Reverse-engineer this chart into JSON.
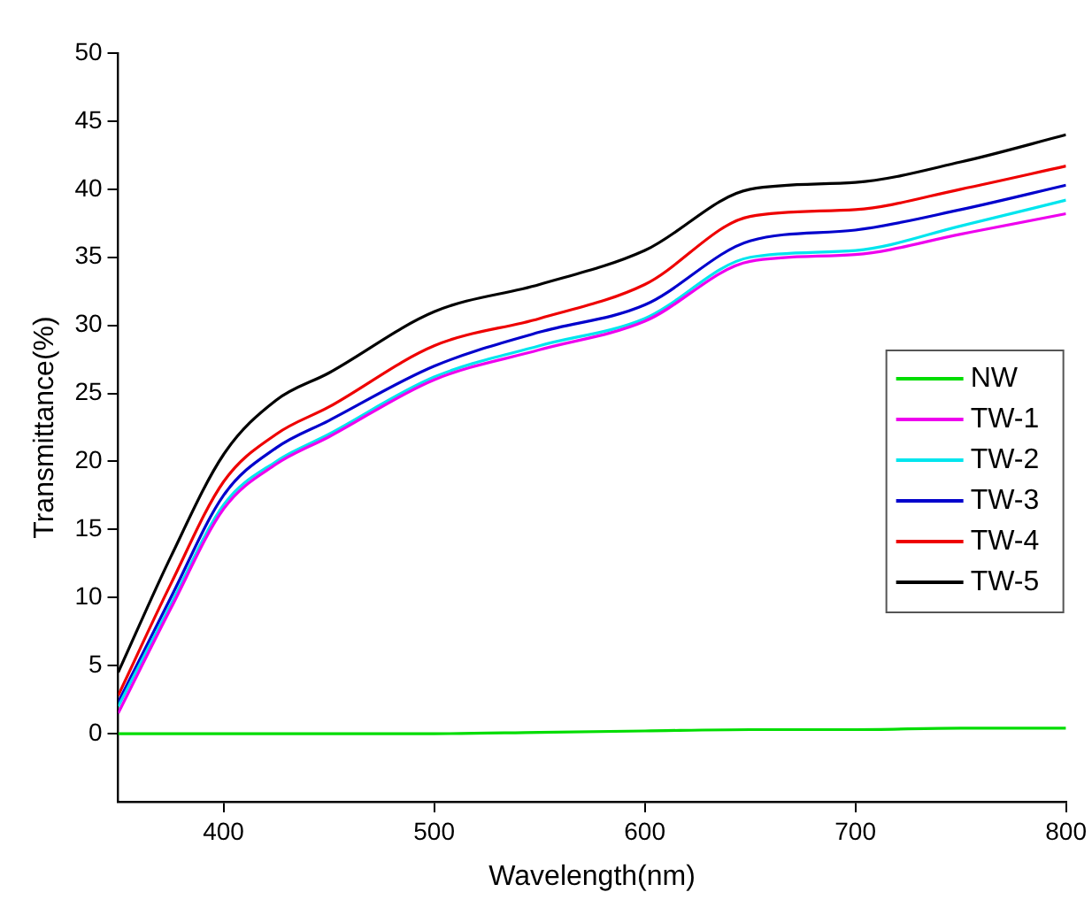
{
  "chart_data": {
    "type": "line",
    "xlabel": "Wavelength(nm)",
    "ylabel": "Transmittance(%)",
    "x": [
      350,
      375,
      400,
      425,
      450,
      500,
      550,
      600,
      650,
      700,
      750,
      800
    ],
    "xlim": [
      350,
      800
    ],
    "xticks": [
      400,
      500,
      600,
      700,
      800
    ],
    "ylim": [
      -5,
      50
    ],
    "yticks": [
      0,
      5,
      10,
      15,
      20,
      25,
      30,
      35,
      40,
      45,
      50
    ],
    "grid": false,
    "legend": "right",
    "marker": "none",
    "line_style": "solid",
    "series": [
      {
        "name": "NW",
        "color": "#00dd00",
        "values": [
          0,
          0,
          0,
          0,
          0,
          0,
          0.1,
          0.2,
          0.3,
          0.3,
          0.4,
          0.4
        ]
      },
      {
        "name": "TW-1",
        "color": "#ee00ee",
        "values": [
          1.5,
          9.2,
          16.5,
          19.8,
          21.8,
          26,
          28.2,
          30.3,
          34.7,
          35.2,
          36.7,
          38.2
        ]
      },
      {
        "name": "TW-2",
        "color": "#00e5ee",
        "values": [
          2,
          9.5,
          16.8,
          20,
          22,
          26.2,
          28.5,
          30.5,
          35,
          35.5,
          37.3,
          39.2
        ]
      },
      {
        "name": "TW-3",
        "color": "#0000cc",
        "values": [
          2.3,
          10,
          17.5,
          21,
          23,
          27,
          29.5,
          31.5,
          36.2,
          37,
          38.5,
          40.3
        ]
      },
      {
        "name": "TW-4",
        "color": "#ee0000",
        "values": [
          2.8,
          11,
          18.5,
          22,
          24,
          28.5,
          30.5,
          33,
          38,
          38.5,
          40,
          41.7
        ]
      },
      {
        "name": "TW-5",
        "color": "#000000",
        "values": [
          4.5,
          13,
          20.5,
          24.5,
          26.5,
          31,
          33,
          35.5,
          40,
          40.5,
          42,
          44
        ]
      }
    ]
  }
}
